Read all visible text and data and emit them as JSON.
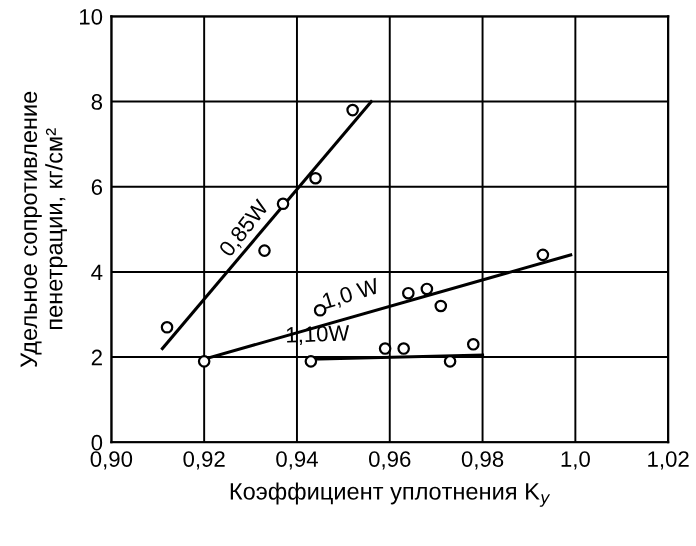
{
  "chart_data": {
    "type": "scatter",
    "xlabel": "Коэффициент уплотнения K$_{y}$",
    "ylabel": "Удельное сопротивление\nпенетрации, кг/см²",
    "xlim": [
      0.9,
      1.02
    ],
    "ylim": [
      0,
      10
    ],
    "xticks": [
      {
        "value": 0.9,
        "label": "0,90"
      },
      {
        "value": 0.92,
        "label": "0,92"
      },
      {
        "value": 0.94,
        "label": "0,94"
      },
      {
        "value": 0.96,
        "label": "0,96"
      },
      {
        "value": 0.98,
        "label": "0,98"
      },
      {
        "value": 1.0,
        "label": "1,0"
      },
      {
        "value": 1.02,
        "label": "1,02"
      }
    ],
    "yticks": [
      0,
      2,
      4,
      6,
      8,
      10
    ],
    "grid": true,
    "legend": false,
    "series": [
      {
        "marker": "circle",
        "color": "#000000",
        "x": [
          0.912,
          0.933,
          0.937,
          0.944,
          0.952
        ],
        "values": [
          2.7,
          4.5,
          5.6,
          6.2,
          7.8
        ]
      },
      {
        "type": "line",
        "marker": "none",
        "line_style": "solid",
        "color": "#000000",
        "x": [
          0.911,
          0.956
        ],
        "values": [
          2.2,
          8.0
        ]
      },
      {
        "marker": "circle",
        "color": "#000000",
        "x": [
          0.92,
          0.945,
          0.964,
          0.968,
          0.971,
          0.993
        ],
        "values": [
          1.9,
          3.1,
          3.5,
          3.6,
          3.2,
          4.4
        ]
      },
      {
        "type": "line",
        "marker": "none",
        "line_style": "solid",
        "color": "#000000",
        "x": [
          0.92,
          0.999
        ],
        "values": [
          1.95,
          4.4
        ]
      },
      {
        "marker": "circle",
        "color": "#000000",
        "x": [
          0.943,
          0.959,
          0.963,
          0.973,
          0.978
        ],
        "values": [
          1.9,
          2.2,
          2.2,
          1.9,
          2.3
        ]
      },
      {
        "type": "line",
        "marker": "none",
        "line_style": "solid",
        "color": "#000000",
        "x": [
          0.943,
          0.98
        ],
        "values": [
          1.95,
          2.05
        ]
      }
    ],
    "annotations": [
      "0,85W",
      "1,0 W",
      "1,10W"
    ]
  }
}
